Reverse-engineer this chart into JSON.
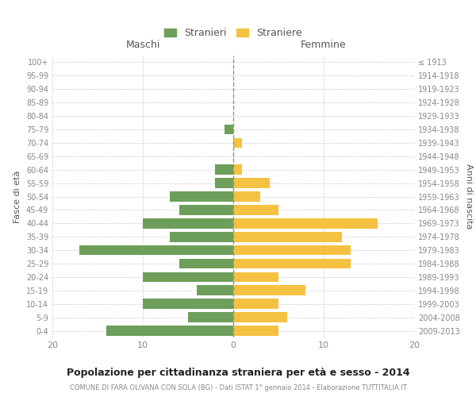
{
  "age_groups": [
    "0-4",
    "5-9",
    "10-14",
    "15-19",
    "20-24",
    "25-29",
    "30-34",
    "35-39",
    "40-44",
    "45-49",
    "50-54",
    "55-59",
    "60-64",
    "65-69",
    "70-74",
    "75-79",
    "80-84",
    "85-89",
    "90-94",
    "95-99",
    "100+"
  ],
  "birth_years": [
    "2009-2013",
    "2004-2008",
    "1999-2003",
    "1994-1998",
    "1989-1993",
    "1984-1988",
    "1979-1983",
    "1974-1978",
    "1969-1973",
    "1964-1968",
    "1959-1963",
    "1954-1958",
    "1949-1953",
    "1944-1948",
    "1939-1943",
    "1934-1938",
    "1929-1933",
    "1924-1928",
    "1919-1923",
    "1914-1918",
    "≤ 1913"
  ],
  "males": [
    14,
    5,
    10,
    4,
    10,
    6,
    17,
    7,
    10,
    6,
    7,
    2,
    2,
    0,
    0,
    1,
    0,
    0,
    0,
    0,
    0
  ],
  "females": [
    5,
    6,
    5,
    8,
    5,
    13,
    13,
    12,
    16,
    5,
    3,
    4,
    1,
    0,
    1,
    0,
    0,
    0,
    0,
    0,
    0
  ],
  "male_color": "#6d9e5a",
  "female_color": "#f5c141",
  "title": "Popolazione per cittadinanza straniera per età e sesso - 2014",
  "subtitle": "COMUNE DI FARA OLIVANA CON SOLA (BG) - Dati ISTAT 1° gennaio 2014 - Elaborazione TUTTITALIA.IT",
  "xlabel_left": "Maschi",
  "xlabel_right": "Femmine",
  "ylabel_left": "Fasce di età",
  "ylabel_right": "Anni di nascita",
  "legend_male": "Stranieri",
  "legend_female": "Straniere",
  "xlim": 20,
  "background_color": "#ffffff",
  "grid_color": "#cccccc",
  "tick_color": "#888888",
  "bar_height": 0.75
}
